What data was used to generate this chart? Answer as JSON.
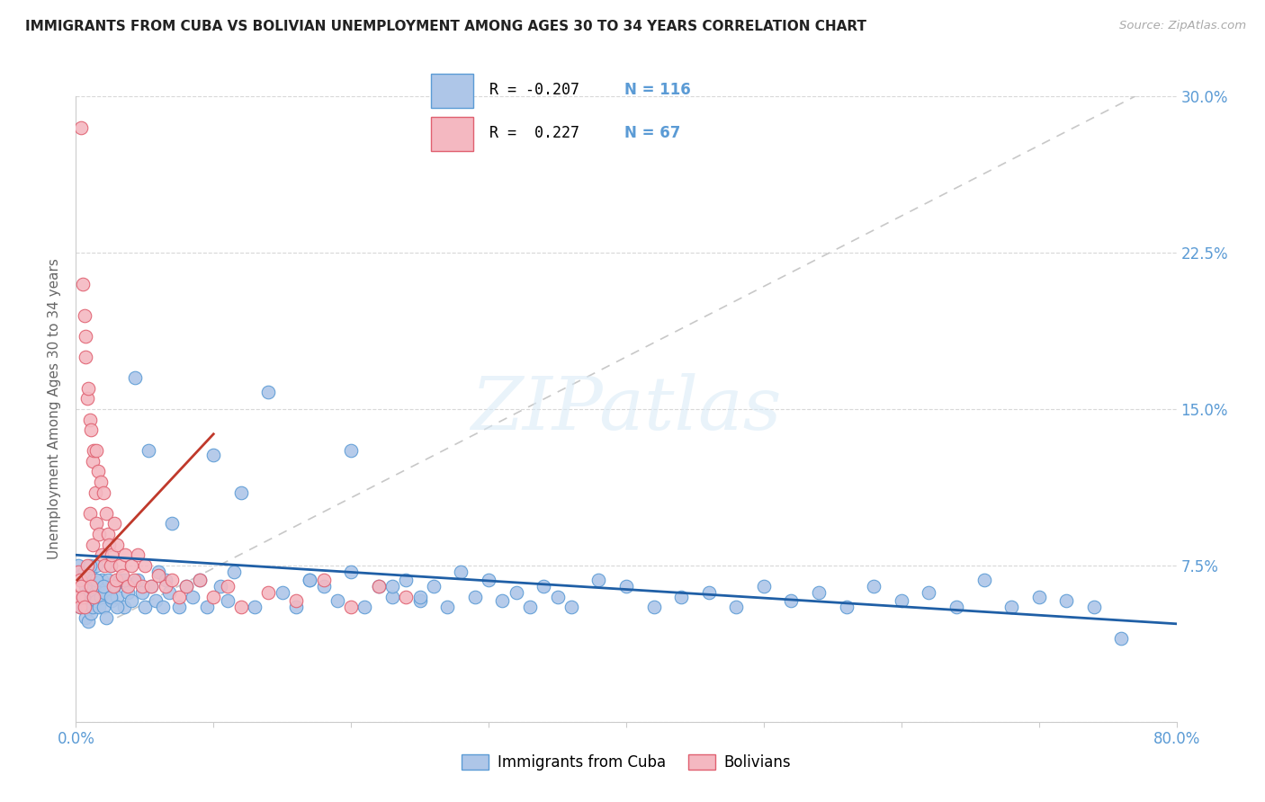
{
  "title": "IMMIGRANTS FROM CUBA VS BOLIVIAN UNEMPLOYMENT AMONG AGES 30 TO 34 YEARS CORRELATION CHART",
  "source": "Source: ZipAtlas.com",
  "ylabel": "Unemployment Among Ages 30 to 34 years",
  "xlim": [
    0,
    0.8
  ],
  "ylim": [
    0,
    0.3
  ],
  "cuba_color": "#aec6e8",
  "cuba_edge": "#5b9bd5",
  "bolivia_color": "#f4b8c1",
  "bolivia_edge": "#e06070",
  "trendline_cuba_color": "#1f5fa6",
  "trendline_bolivia_color": "#c0392b",
  "diag_line_color": "#c8c8c8",
  "legend_R_cuba": "-0.207",
  "legend_N_cuba": "116",
  "legend_R_bolivia": " 0.227",
  "legend_N_bolivia": "67",
  "watermark": "ZIPatlas",
  "title_fontsize": 11,
  "axis_tick_color": "#5b9bd5",
  "ylabel_color": "#666666",
  "grid_color": "#d8d8d8",
  "cuba_x": [
    0.002,
    0.003,
    0.003,
    0.004,
    0.005,
    0.005,
    0.006,
    0.006,
    0.007,
    0.007,
    0.008,
    0.008,
    0.009,
    0.009,
    0.01,
    0.01,
    0.011,
    0.011,
    0.012,
    0.012,
    0.013,
    0.014,
    0.015,
    0.015,
    0.016,
    0.017,
    0.018,
    0.019,
    0.02,
    0.021,
    0.022,
    0.023,
    0.025,
    0.026,
    0.028,
    0.03,
    0.032,
    0.035,
    0.038,
    0.04,
    0.043,
    0.045,
    0.048,
    0.05,
    0.053,
    0.055,
    0.058,
    0.06,
    0.063,
    0.065,
    0.068,
    0.07,
    0.075,
    0.08,
    0.085,
    0.09,
    0.095,
    0.1,
    0.105,
    0.11,
    0.115,
    0.12,
    0.13,
    0.14,
    0.15,
    0.16,
    0.17,
    0.18,
    0.19,
    0.2,
    0.21,
    0.22,
    0.23,
    0.24,
    0.25,
    0.26,
    0.27,
    0.28,
    0.29,
    0.3,
    0.31,
    0.32,
    0.33,
    0.34,
    0.35,
    0.36,
    0.38,
    0.4,
    0.42,
    0.44,
    0.46,
    0.48,
    0.5,
    0.52,
    0.54,
    0.56,
    0.58,
    0.6,
    0.62,
    0.64,
    0.66,
    0.68,
    0.7,
    0.72,
    0.74,
    0.76,
    0.17,
    0.2,
    0.23,
    0.25,
    0.01,
    0.015,
    0.02,
    0.025,
    0.03,
    0.035
  ],
  "cuba_y": [
    0.075,
    0.068,
    0.055,
    0.07,
    0.06,
    0.055,
    0.072,
    0.058,
    0.065,
    0.05,
    0.068,
    0.055,
    0.062,
    0.048,
    0.058,
    0.072,
    0.065,
    0.052,
    0.06,
    0.055,
    0.068,
    0.062,
    0.058,
    0.075,
    0.065,
    0.055,
    0.06,
    0.068,
    0.055,
    0.062,
    0.05,
    0.068,
    0.075,
    0.058,
    0.065,
    0.06,
    0.068,
    0.055,
    0.062,
    0.058,
    0.165,
    0.068,
    0.062,
    0.055,
    0.13,
    0.065,
    0.058,
    0.072,
    0.055,
    0.068,
    0.062,
    0.095,
    0.055,
    0.065,
    0.06,
    0.068,
    0.055,
    0.128,
    0.065,
    0.058,
    0.072,
    0.11,
    0.055,
    0.158,
    0.062,
    0.055,
    0.068,
    0.065,
    0.058,
    0.072,
    0.055,
    0.065,
    0.06,
    0.068,
    0.058,
    0.065,
    0.055,
    0.072,
    0.06,
    0.068,
    0.058,
    0.062,
    0.055,
    0.065,
    0.06,
    0.055,
    0.068,
    0.065,
    0.055,
    0.06,
    0.062,
    0.055,
    0.065,
    0.058,
    0.062,
    0.055,
    0.065,
    0.058,
    0.062,
    0.055,
    0.068,
    0.055,
    0.06,
    0.058,
    0.055,
    0.04,
    0.068,
    0.13,
    0.065,
    0.06,
    0.075,
    0.068,
    0.065,
    0.06,
    0.055,
    0.068
  ],
  "bolivia_x": [
    0.002,
    0.002,
    0.003,
    0.003,
    0.004,
    0.004,
    0.005,
    0.005,
    0.006,
    0.006,
    0.007,
    0.007,
    0.008,
    0.008,
    0.009,
    0.009,
    0.01,
    0.01,
    0.011,
    0.011,
    0.012,
    0.012,
    0.013,
    0.013,
    0.014,
    0.015,
    0.015,
    0.016,
    0.017,
    0.018,
    0.019,
    0.02,
    0.021,
    0.022,
    0.023,
    0.024,
    0.025,
    0.026,
    0.027,
    0.028,
    0.029,
    0.03,
    0.032,
    0.034,
    0.036,
    0.038,
    0.04,
    0.042,
    0.045,
    0.048,
    0.05,
    0.055,
    0.06,
    0.065,
    0.07,
    0.075,
    0.08,
    0.09,
    0.1,
    0.11,
    0.12,
    0.14,
    0.16,
    0.18,
    0.2,
    0.22,
    0.24
  ],
  "bolivia_y": [
    0.072,
    0.06,
    0.068,
    0.055,
    0.285,
    0.065,
    0.21,
    0.06,
    0.195,
    0.055,
    0.185,
    0.175,
    0.155,
    0.075,
    0.16,
    0.07,
    0.145,
    0.1,
    0.14,
    0.065,
    0.125,
    0.085,
    0.13,
    0.06,
    0.11,
    0.13,
    0.095,
    0.12,
    0.09,
    0.115,
    0.08,
    0.11,
    0.075,
    0.1,
    0.09,
    0.085,
    0.075,
    0.08,
    0.065,
    0.095,
    0.068,
    0.085,
    0.075,
    0.07,
    0.08,
    0.065,
    0.075,
    0.068,
    0.08,
    0.065,
    0.075,
    0.065,
    0.07,
    0.065,
    0.068,
    0.06,
    0.065,
    0.068,
    0.06,
    0.065,
    0.055,
    0.062,
    0.058,
    0.068,
    0.055,
    0.065,
    0.06
  ]
}
